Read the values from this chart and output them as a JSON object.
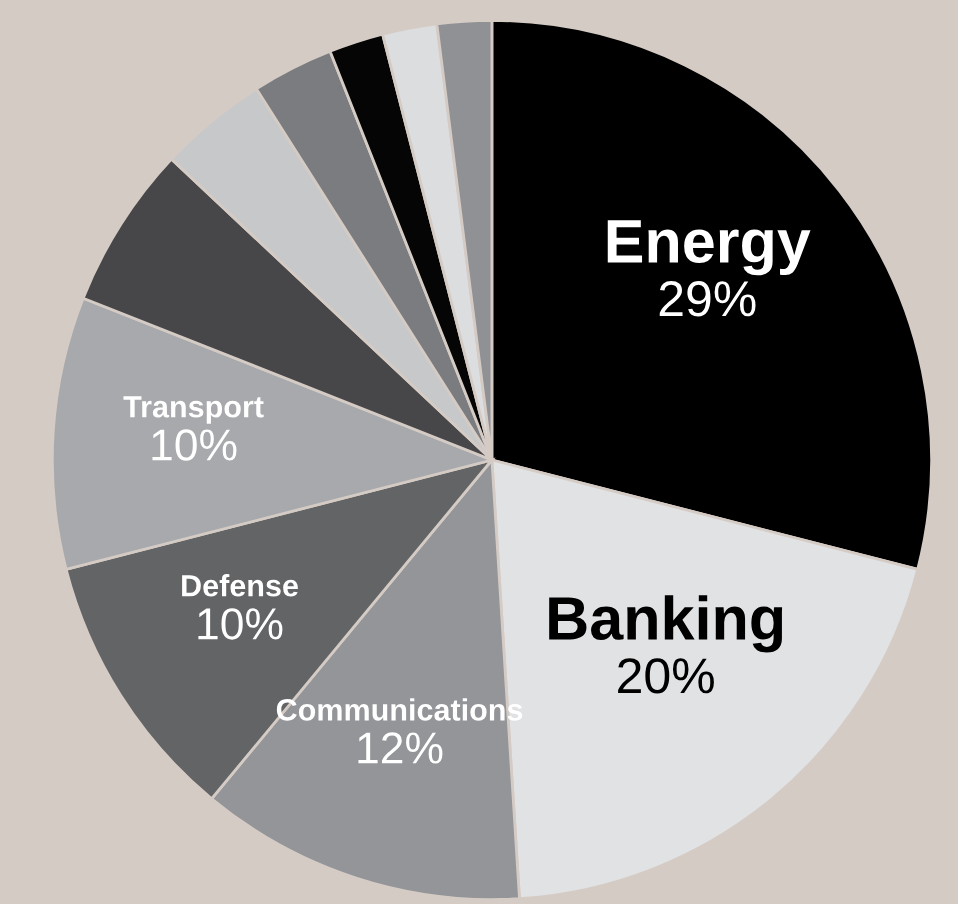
{
  "chart_data": {
    "type": "pie",
    "categories": [
      "Energy",
      "Banking",
      "Communications",
      "Defense",
      "Transport",
      null,
      null,
      null,
      null,
      null,
      null
    ],
    "values": [
      29,
      20,
      12,
      10,
      10,
      6,
      4,
      3,
      2,
      2,
      2
    ],
    "value_labels": [
      "29%",
      "20%",
      "12%",
      "10%",
      "10%",
      null,
      null,
      null,
      null,
      null,
      null
    ],
    "colors": [
      "#000000",
      "#e1e2e4",
      "#939598",
      "#636466",
      "#a7a9ac",
      "#474749",
      "#c6c8ca",
      "#7b7c7f",
      "#050505",
      "#dcdddf",
      "#8f9194"
    ]
  }
}
